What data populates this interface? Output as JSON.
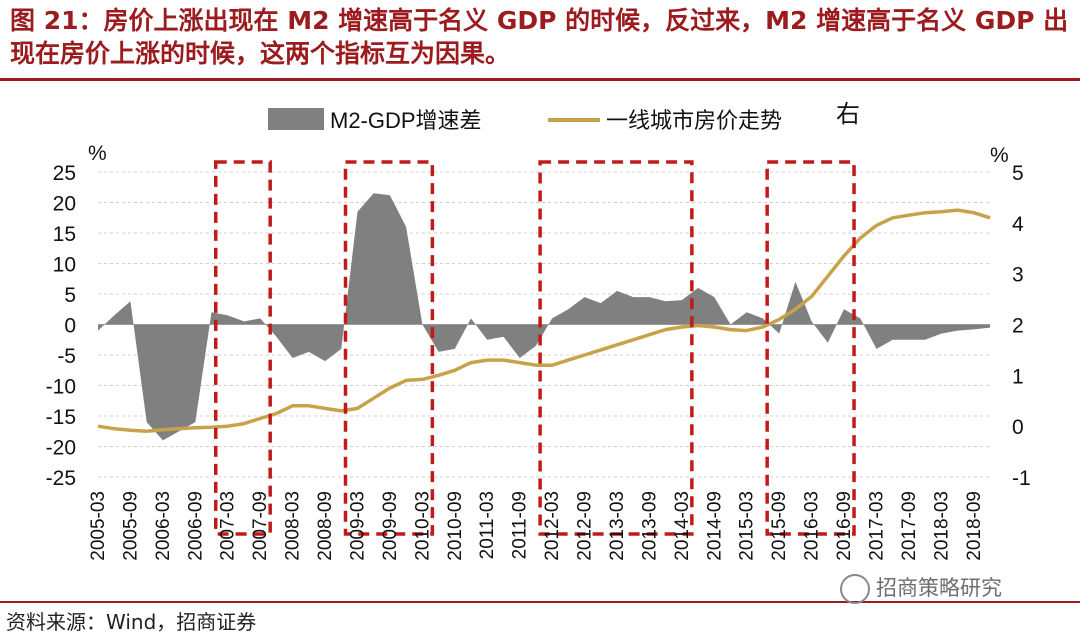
{
  "figure": {
    "title": "图 21：房价上涨出现在 M2 增速高于名义 GDP 的时候，反过来，M2 增速高于名义 GDP 出现在房价上涨的时候，这两个指标互为因果。",
    "source": "资料来源：Wind，招商证券",
    "watermark": "招商策略研究",
    "colors": {
      "title": "#9b1b1e",
      "area": "#808080",
      "line": "#c8a24a",
      "box": "#c01b1b"
    }
  },
  "chart_data": {
    "type": "area+line",
    "left_unit": "%",
    "right_unit": "%",
    "right_axis_note": "右",
    "y_left": {
      "min": -25,
      "max": 25,
      "ticks": [
        25,
        20,
        15,
        10,
        5,
        0,
        -5,
        -10,
        -15,
        -20,
        -25
      ]
    },
    "y_right": {
      "min": -1,
      "max": 5,
      "ticks": [
        5,
        4,
        3,
        2,
        1,
        0,
        -1
      ]
    },
    "x_tick_labels": [
      "2005-03",
      "2005-09",
      "2006-03",
      "2006-09",
      "2007-03",
      "2007-09",
      "2008-03",
      "2008-09",
      "2009-03",
      "2009-09",
      "2010-03",
      "2010-09",
      "2011-03",
      "2011-09",
      "2012-03",
      "2012-09",
      "2013-03",
      "2013-09",
      "2014-03",
      "2014-09",
      "2015-03",
      "2015-09",
      "2016-03",
      "2016-09",
      "2017-03",
      "2017-09",
      "2018-03",
      "2018-09"
    ],
    "quarters": [
      "2005-03",
      "2005-06",
      "2005-09",
      "2005-12",
      "2006-03",
      "2006-06",
      "2006-09",
      "2006-12",
      "2007-03",
      "2007-06",
      "2007-09",
      "2007-12",
      "2008-03",
      "2008-06",
      "2008-09",
      "2008-12",
      "2009-03",
      "2009-06",
      "2009-09",
      "2009-12",
      "2010-03",
      "2010-06",
      "2010-09",
      "2010-12",
      "2011-03",
      "2011-06",
      "2011-09",
      "2011-12",
      "2012-03",
      "2012-06",
      "2012-09",
      "2012-12",
      "2013-03",
      "2013-06",
      "2013-09",
      "2013-12",
      "2014-03",
      "2014-06",
      "2014-09",
      "2014-12",
      "2015-03",
      "2015-06",
      "2015-09",
      "2015-12",
      "2016-03",
      "2016-06",
      "2016-09",
      "2016-12",
      "2017-03",
      "2017-06",
      "2017-09",
      "2017-12",
      "2018-03",
      "2018-06",
      "2018-09",
      "2018-12"
    ],
    "series": [
      {
        "name": "M2-GDP增速差",
        "axis": "left",
        "kind": "area",
        "values": [
          -1,
          1.5,
          3.8,
          -16,
          -19,
          -17.5,
          -16,
          2,
          1.5,
          0.5,
          1,
          -2,
          -5.5,
          -4.5,
          -6,
          -4,
          18.5,
          21.5,
          21.2,
          16,
          0,
          -4.5,
          -4,
          1,
          -2.5,
          -2,
          -5.5,
          -3.5,
          1,
          2.5,
          4.5,
          3.5,
          5.5,
          4.5,
          4.5,
          3.8,
          4,
          6,
          4.5,
          0,
          2,
          1,
          -1.5,
          7,
          0.5,
          -3,
          2.5,
          1,
          -4,
          -2.5,
          -2.5,
          -2.5,
          -1.5,
          -1,
          -0.8,
          -0.5
        ]
      },
      {
        "name": "一线城市房价走势",
        "axis": "right",
        "kind": "line",
        "values": [
          0,
          -0.05,
          -0.08,
          -0.1,
          -0.07,
          -0.05,
          -0.03,
          -0.02,
          0,
          0.05,
          0.15,
          0.25,
          0.4,
          0.4,
          0.35,
          0.3,
          0.35,
          0.55,
          0.75,
          0.9,
          0.92,
          1,
          1.1,
          1.25,
          1.3,
          1.3,
          1.25,
          1.2,
          1.2,
          1.3,
          1.4,
          1.5,
          1.6,
          1.7,
          1.8,
          1.9,
          1.95,
          1.98,
          1.95,
          1.9,
          1.88,
          1.95,
          2.1,
          2.3,
          2.55,
          2.95,
          3.35,
          3.7,
          3.95,
          4.1,
          4.15,
          4.2,
          4.22,
          4.25,
          4.2,
          4.1
        ]
      }
    ],
    "highlight_boxes": [
      {
        "label": "box-2007",
        "from_label": "2007-03",
        "to_label": "2007-09"
      },
      {
        "label": "box-2009",
        "from_label": "2009-03",
        "to_label": "2010-03"
      },
      {
        "label": "box-2012",
        "from_label": "2012-03",
        "to_label": "2014-03"
      },
      {
        "label": "box-2016",
        "from_label": "2015-09",
        "to_label": "2016-09"
      }
    ]
  }
}
